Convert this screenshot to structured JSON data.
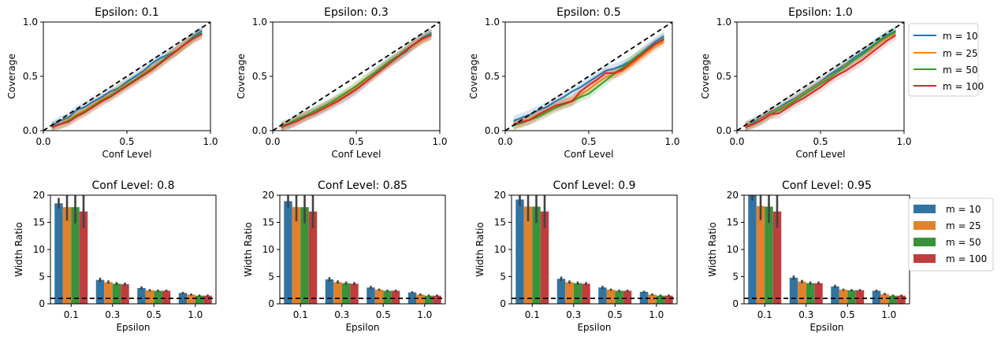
{
  "colors": {
    "m10": "#1f77b4",
    "m25": "#ff7f0e",
    "m50": "#2ca02c",
    "m100": "#d62728",
    "bar_m10": "#3274a1",
    "bar_m25": "#e1812c",
    "bar_m50": "#3a923a",
    "bar_m100": "#c03d3e",
    "ideal": "#000000",
    "errbar": "#424242"
  },
  "legend_top": [
    "m = 10",
    "m = 25",
    "m = 50",
    "m = 100"
  ],
  "legend_bottom": [
    "m = 10",
    "m = 25",
    "m = 50",
    "m = 100"
  ],
  "chart_data": [
    {
      "type": "line",
      "title": "Epsilon: 0.1",
      "xlabel": "Conf Level",
      "ylabel": "Coverage",
      "xlim": [
        0.0,
        1.0
      ],
      "ylim": [
        0.0,
        1.0
      ],
      "xticks": [
        "0.0",
        "0.5",
        "1.0"
      ],
      "yticks": [
        "0.0",
        "0.5",
        "1.0"
      ],
      "x": [
        0.05,
        0.1,
        0.15,
        0.2,
        0.25,
        0.3,
        0.35,
        0.4,
        0.45,
        0.5,
        0.55,
        0.6,
        0.65,
        0.7,
        0.75,
        0.8,
        0.85,
        0.9,
        0.95
      ],
      "reference_line": "diagonal",
      "series": [
        {
          "name": "m = 10",
          "values": [
            0.04,
            0.09,
            0.12,
            0.19,
            0.22,
            0.27,
            0.31,
            0.36,
            0.39,
            0.45,
            0.5,
            0.55,
            0.62,
            0.67,
            0.7,
            0.74,
            0.8,
            0.87,
            0.92
          ]
        },
        {
          "name": "m = 25",
          "values": [
            0.03,
            0.06,
            0.1,
            0.15,
            0.19,
            0.24,
            0.29,
            0.33,
            0.38,
            0.43,
            0.47,
            0.53,
            0.58,
            0.62,
            0.68,
            0.73,
            0.79,
            0.85,
            0.89
          ]
        },
        {
          "name": "m = 50",
          "values": [
            0.03,
            0.06,
            0.09,
            0.14,
            0.18,
            0.23,
            0.28,
            0.32,
            0.37,
            0.42,
            0.47,
            0.52,
            0.57,
            0.63,
            0.69,
            0.74,
            0.8,
            0.86,
            0.9
          ]
        },
        {
          "name": "m = 100",
          "values": [
            0.03,
            0.06,
            0.08,
            0.13,
            0.17,
            0.22,
            0.27,
            0.31,
            0.36,
            0.41,
            0.46,
            0.51,
            0.56,
            0.62,
            0.68,
            0.74,
            0.8,
            0.85,
            0.89
          ]
        }
      ]
    },
    {
      "type": "line",
      "title": "Epsilon: 0.3",
      "xlabel": "Conf Level",
      "ylabel": "Coverage",
      "xlim": [
        0.0,
        1.0
      ],
      "ylim": [
        0.0,
        1.0
      ],
      "xticks": [
        "0.0",
        "0.5",
        "1.0"
      ],
      "yticks": [
        "0.0",
        "0.5",
        "1.0"
      ],
      "x": [
        0.05,
        0.1,
        0.15,
        0.2,
        0.25,
        0.3,
        0.35,
        0.4,
        0.45,
        0.5,
        0.55,
        0.6,
        0.65,
        0.7,
        0.75,
        0.8,
        0.85,
        0.9,
        0.95
      ],
      "reference_line": "diagonal",
      "series": [
        {
          "name": "m = 10",
          "values": [
            0.03,
            0.06,
            0.1,
            0.14,
            0.17,
            0.21,
            0.25,
            0.29,
            0.33,
            0.38,
            0.44,
            0.52,
            0.58,
            0.63,
            0.68,
            0.73,
            0.8,
            0.86,
            0.9
          ]
        },
        {
          "name": "m = 25",
          "values": [
            0.03,
            0.06,
            0.1,
            0.13,
            0.17,
            0.21,
            0.25,
            0.3,
            0.35,
            0.4,
            0.46,
            0.51,
            0.57,
            0.63,
            0.68,
            0.74,
            0.79,
            0.84,
            0.88
          ]
        },
        {
          "name": "m = 50",
          "values": [
            0.04,
            0.07,
            0.11,
            0.14,
            0.18,
            0.22,
            0.26,
            0.31,
            0.36,
            0.41,
            0.47,
            0.52,
            0.58,
            0.64,
            0.69,
            0.75,
            0.8,
            0.85,
            0.89
          ]
        },
        {
          "name": "m = 100",
          "values": [
            0.03,
            0.06,
            0.09,
            0.13,
            0.16,
            0.2,
            0.24,
            0.28,
            0.33,
            0.38,
            0.44,
            0.5,
            0.56,
            0.62,
            0.68,
            0.74,
            0.8,
            0.85,
            0.88
          ]
        }
      ]
    },
    {
      "type": "line",
      "title": "Epsilon: 0.5",
      "xlabel": "Conf Level",
      "ylabel": "Coverage",
      "xlim": [
        0.0,
        1.0
      ],
      "ylim": [
        0.0,
        1.0
      ],
      "xticks": [
        "0.0",
        "0.5",
        "1.0"
      ],
      "yticks": [
        "0.0",
        "0.5",
        "1.0"
      ],
      "x": [
        0.05,
        0.1,
        0.15,
        0.2,
        0.25,
        0.3,
        0.35,
        0.4,
        0.45,
        0.5,
        0.55,
        0.6,
        0.65,
        0.7,
        0.75,
        0.8,
        0.85,
        0.9,
        0.95
      ],
      "reference_line": "diagonal",
      "series": [
        {
          "name": "m = 10",
          "values": [
            0.09,
            0.12,
            0.15,
            0.19,
            0.22,
            0.27,
            0.31,
            0.36,
            0.4,
            0.45,
            0.5,
            0.55,
            0.57,
            0.6,
            0.64,
            0.7,
            0.76,
            0.82,
            0.87
          ]
        },
        {
          "name": "m = 25",
          "values": [
            0.05,
            0.08,
            0.11,
            0.15,
            0.18,
            0.22,
            0.25,
            0.28,
            0.33,
            0.38,
            0.44,
            0.49,
            0.52,
            0.55,
            0.6,
            0.66,
            0.72,
            0.78,
            0.82
          ]
        },
        {
          "name": "m = 50",
          "values": [
            0.05,
            0.07,
            0.1,
            0.13,
            0.17,
            0.21,
            0.24,
            0.27,
            0.31,
            0.34,
            0.4,
            0.46,
            0.52,
            0.58,
            0.64,
            0.7,
            0.75,
            0.8,
            0.85
          ]
        },
        {
          "name": "m = 100",
          "values": [
            0.06,
            0.08,
            0.1,
            0.15,
            0.19,
            0.23,
            0.25,
            0.27,
            0.36,
            0.42,
            0.47,
            0.53,
            0.53,
            0.56,
            0.62,
            0.68,
            0.74,
            0.8,
            0.84
          ]
        }
      ]
    },
    {
      "type": "line",
      "title": "Epsilon: 1.0",
      "xlabel": "Conf Level",
      "ylabel": "Coverage",
      "xlim": [
        0.0,
        1.0
      ],
      "ylim": [
        0.0,
        1.0
      ],
      "xticks": [
        "0.0",
        "0.5",
        "1.0"
      ],
      "yticks": [
        "0.0",
        "0.5",
        "1.0"
      ],
      "x": [
        0.05,
        0.1,
        0.15,
        0.2,
        0.25,
        0.3,
        0.35,
        0.4,
        0.45,
        0.5,
        0.55,
        0.6,
        0.65,
        0.7,
        0.75,
        0.8,
        0.85,
        0.9,
        0.95
      ],
      "reference_line": "diagonal",
      "series": [
        {
          "name": "m = 10",
          "values": [
            0.04,
            0.08,
            0.12,
            0.17,
            0.21,
            0.26,
            0.3,
            0.35,
            0.4,
            0.45,
            0.51,
            0.56,
            0.61,
            0.67,
            0.72,
            0.77,
            0.83,
            0.88,
            0.92
          ]
        },
        {
          "name": "m = 25",
          "values": [
            0.04,
            0.07,
            0.11,
            0.16,
            0.2,
            0.24,
            0.29,
            0.34,
            0.39,
            0.44,
            0.49,
            0.54,
            0.6,
            0.65,
            0.7,
            0.75,
            0.81,
            0.86,
            0.9
          ]
        },
        {
          "name": "m = 50",
          "values": [
            0.03,
            0.07,
            0.1,
            0.15,
            0.19,
            0.23,
            0.28,
            0.33,
            0.38,
            0.43,
            0.48,
            0.54,
            0.59,
            0.65,
            0.7,
            0.76,
            0.82,
            0.87,
            0.91
          ]
        },
        {
          "name": "m = 100",
          "values": [
            0.03,
            0.06,
            0.1,
            0.15,
            0.16,
            0.21,
            0.26,
            0.3,
            0.35,
            0.4,
            0.46,
            0.51,
            0.55,
            0.6,
            0.65,
            0.71,
            0.77,
            0.83,
            0.88
          ]
        }
      ]
    },
    {
      "type": "bar",
      "title": "Conf Level: 0.8",
      "xlabel": "Epsilon",
      "ylabel": "Width Ratio",
      "ylim": [
        0,
        20
      ],
      "yticks": [
        "0",
        "5",
        "10",
        "15",
        "20"
      ],
      "categories": [
        "0.1",
        "0.3",
        "0.5",
        "1.0"
      ],
      "reference_line_y": 1,
      "series": [
        {
          "name": "m = 10",
          "values": [
            18.5,
            4.4,
            2.9,
            2.0
          ],
          "err": [
            1.0,
            0.4,
            0.3,
            0.2
          ]
        },
        {
          "name": "m = 25",
          "values": [
            17.8,
            4.0,
            2.5,
            1.7
          ],
          "err": [
            2.5,
            0.3,
            0.2,
            0.2
          ]
        },
        {
          "name": "m = 50",
          "values": [
            17.8,
            3.7,
            2.4,
            1.5
          ],
          "err": [
            3.0,
            0.3,
            0.2,
            0.2
          ]
        },
        {
          "name": "m = 100",
          "values": [
            17.0,
            3.6,
            2.4,
            1.5
          ],
          "err": [
            3.0,
            0.3,
            0.2,
            0.2
          ]
        }
      ]
    },
    {
      "type": "bar",
      "title": "Conf Level: 0.85",
      "xlabel": "Epsilon",
      "ylabel": "Width Ratio",
      "ylim": [
        0,
        20
      ],
      "yticks": [
        "0",
        "5",
        "10",
        "15",
        "20"
      ],
      "categories": [
        "0.1",
        "0.3",
        "0.5",
        "1.0"
      ],
      "reference_line_y": 1,
      "series": [
        {
          "name": "m = 10",
          "values": [
            18.9,
            4.5,
            3.0,
            2.1
          ],
          "err": [
            1.2,
            0.4,
            0.3,
            0.2
          ]
        },
        {
          "name": "m = 25",
          "values": [
            17.8,
            4.0,
            2.6,
            1.7
          ],
          "err": [
            2.6,
            0.3,
            0.2,
            0.2
          ]
        },
        {
          "name": "m = 50",
          "values": [
            17.8,
            3.8,
            2.4,
            1.5
          ],
          "err": [
            3.0,
            0.3,
            0.2,
            0.2
          ]
        },
        {
          "name": "m = 100",
          "values": [
            17.0,
            3.7,
            2.4,
            1.5
          ],
          "err": [
            3.0,
            0.3,
            0.2,
            0.2
          ]
        }
      ]
    },
    {
      "type": "bar",
      "title": "Conf Level: 0.9",
      "xlabel": "Epsilon",
      "ylabel": "Width Ratio",
      "ylim": [
        0,
        20
      ],
      "yticks": [
        "0",
        "5",
        "10",
        "15",
        "20"
      ],
      "categories": [
        "0.1",
        "0.3",
        "0.5",
        "1.0"
      ],
      "reference_line_y": 1,
      "series": [
        {
          "name": "m = 10",
          "values": [
            19.2,
            4.6,
            3.0,
            2.2
          ],
          "err": [
            1.2,
            0.4,
            0.3,
            0.2
          ]
        },
        {
          "name": "m = 25",
          "values": [
            17.9,
            4.0,
            2.6,
            1.7
          ],
          "err": [
            2.7,
            0.3,
            0.2,
            0.2
          ]
        },
        {
          "name": "m = 50",
          "values": [
            17.9,
            3.8,
            2.4,
            1.5
          ],
          "err": [
            3.0,
            0.3,
            0.2,
            0.2
          ]
        },
        {
          "name": "m = 100",
          "values": [
            17.0,
            3.7,
            2.4,
            1.5
          ],
          "err": [
            3.0,
            0.3,
            0.2,
            0.2
          ]
        }
      ]
    },
    {
      "type": "bar",
      "title": "Conf Level: 0.95",
      "xlabel": "Epsilon",
      "ylabel": "Width Ratio",
      "ylim": [
        0,
        20
      ],
      "yticks": [
        "0",
        "5",
        "10",
        "15",
        "20"
      ],
      "categories": [
        "0.1",
        "0.3",
        "0.5",
        "1.0"
      ],
      "reference_line_y": 1,
      "series": [
        {
          "name": "m = 10",
          "values": [
            20.0,
            4.8,
            3.2,
            2.4
          ],
          "err": [
            1.0,
            0.4,
            0.3,
            0.2
          ]
        },
        {
          "name": "m = 25",
          "values": [
            18.0,
            4.1,
            2.6,
            1.8
          ],
          "err": [
            2.6,
            0.3,
            0.2,
            0.2
          ]
        },
        {
          "name": "m = 50",
          "values": [
            17.9,
            3.8,
            2.5,
            1.5
          ],
          "err": [
            3.0,
            0.3,
            0.2,
            0.2
          ]
        },
        {
          "name": "m = 100",
          "values": [
            17.0,
            3.8,
            2.5,
            1.5
          ],
          "err": [
            3.0,
            0.3,
            0.2,
            0.2
          ]
        }
      ]
    }
  ]
}
